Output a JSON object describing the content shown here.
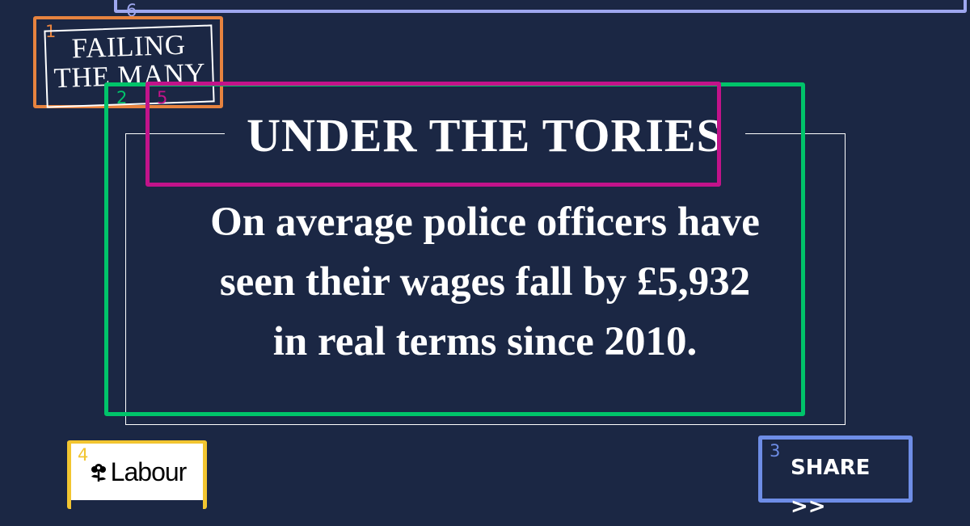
{
  "stamp": {
    "line1": "FAILING",
    "line2": "THE MANY"
  },
  "headline": "UNDER THE TORIES",
  "statement": {
    "line1": "On average police officers have",
    "line2": "seen their wages fall by £5,932",
    "line3": "in real terms since 2010."
  },
  "logo": {
    "wordmark": "Labour",
    "icon": "rose-icon"
  },
  "share": {
    "label": "SHARE >>"
  },
  "markers": [
    "1",
    "2",
    "3",
    "4",
    "5",
    "6"
  ],
  "colors": {
    "background": "#1b2744",
    "text": "#ffffff",
    "marker_1": "#e7833f",
    "marker_2": "#00c46a",
    "marker_3": "#6e8de6",
    "marker_4": "#f2c530",
    "marker_5": "#c2138a",
    "marker_6": "#9ea7ef"
  }
}
